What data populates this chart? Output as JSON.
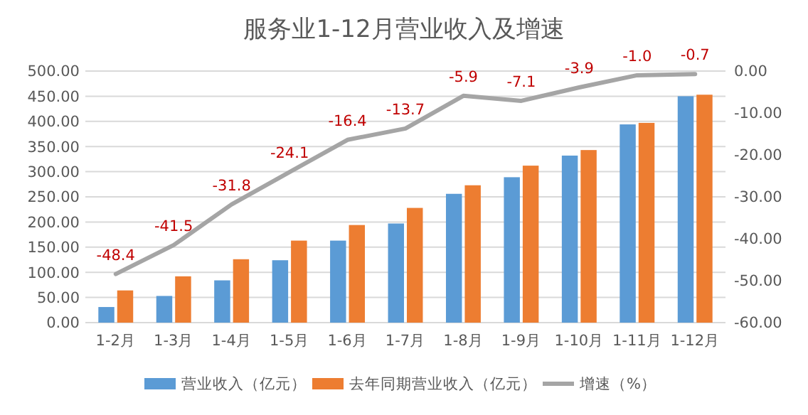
{
  "chart_data": {
    "type": "bar",
    "title": "服务业1-12月营业收入及增速",
    "categories": [
      "1-2月",
      "1-3月",
      "1-4月",
      "1-5月",
      "1-6月",
      "1-7月",
      "1-8月",
      "1-9月",
      "1-10月",
      "1-11月",
      "1-12月"
    ],
    "series": [
      {
        "name": "营业收入（亿元）",
        "color": "#5b9bd5",
        "values": [
          31,
          53,
          84,
          124,
          163,
          197,
          256,
          289,
          332,
          394,
          450
        ]
      },
      {
        "name": "去年同期营业收入（亿元）",
        "color": "#ed7d31",
        "values": [
          64,
          92,
          126,
          163,
          194,
          228,
          273,
          312,
          343,
          397,
          453
        ]
      },
      {
        "name": "增速（%）",
        "type": "line",
        "axis": "y2",
        "color": "#a5a5a5",
        "values": [
          -48.4,
          -41.5,
          -31.8,
          -24.1,
          -16.4,
          -13.7,
          -5.9,
          -7.1,
          -3.9,
          -1.0,
          -0.7
        ],
        "value_labels": [
          "-48.4",
          "-41.5",
          "-31.8",
          "-24.1",
          "-16.4",
          "-13.7",
          "-5.9",
          "-7.1",
          "-3.9",
          "-1.0",
          "-0.7"
        ]
      }
    ],
    "ylim": [
      0,
      500
    ],
    "yticks": [
      {
        "value": 0,
        "label": "0.00"
      },
      {
        "value": 50,
        "label": "50.00"
      },
      {
        "value": 100,
        "label": "100.00"
      },
      {
        "value": 150,
        "label": "150.00"
      },
      {
        "value": 200,
        "label": "200.00"
      },
      {
        "value": 250,
        "label": "250.00"
      },
      {
        "value": 300,
        "label": "300.00"
      },
      {
        "value": 350,
        "label": "350.00"
      },
      {
        "value": 400,
        "label": "400.00"
      },
      {
        "value": 450,
        "label": "450.00"
      },
      {
        "value": 500,
        "label": "500.00"
      }
    ],
    "y2lim": [
      -60,
      0
    ],
    "y2ticks": [
      {
        "value": -60,
        "label": "-60.00"
      },
      {
        "value": -50,
        "label": "-50.00"
      },
      {
        "value": -40,
        "label": "-40.00"
      },
      {
        "value": -30,
        "label": "-30.00"
      },
      {
        "value": -20,
        "label": "-20.00"
      },
      {
        "value": -10,
        "label": "-10.00"
      },
      {
        "value": 0,
        "label": "0.00"
      }
    ],
    "grid": "y",
    "legend": "bottom"
  }
}
